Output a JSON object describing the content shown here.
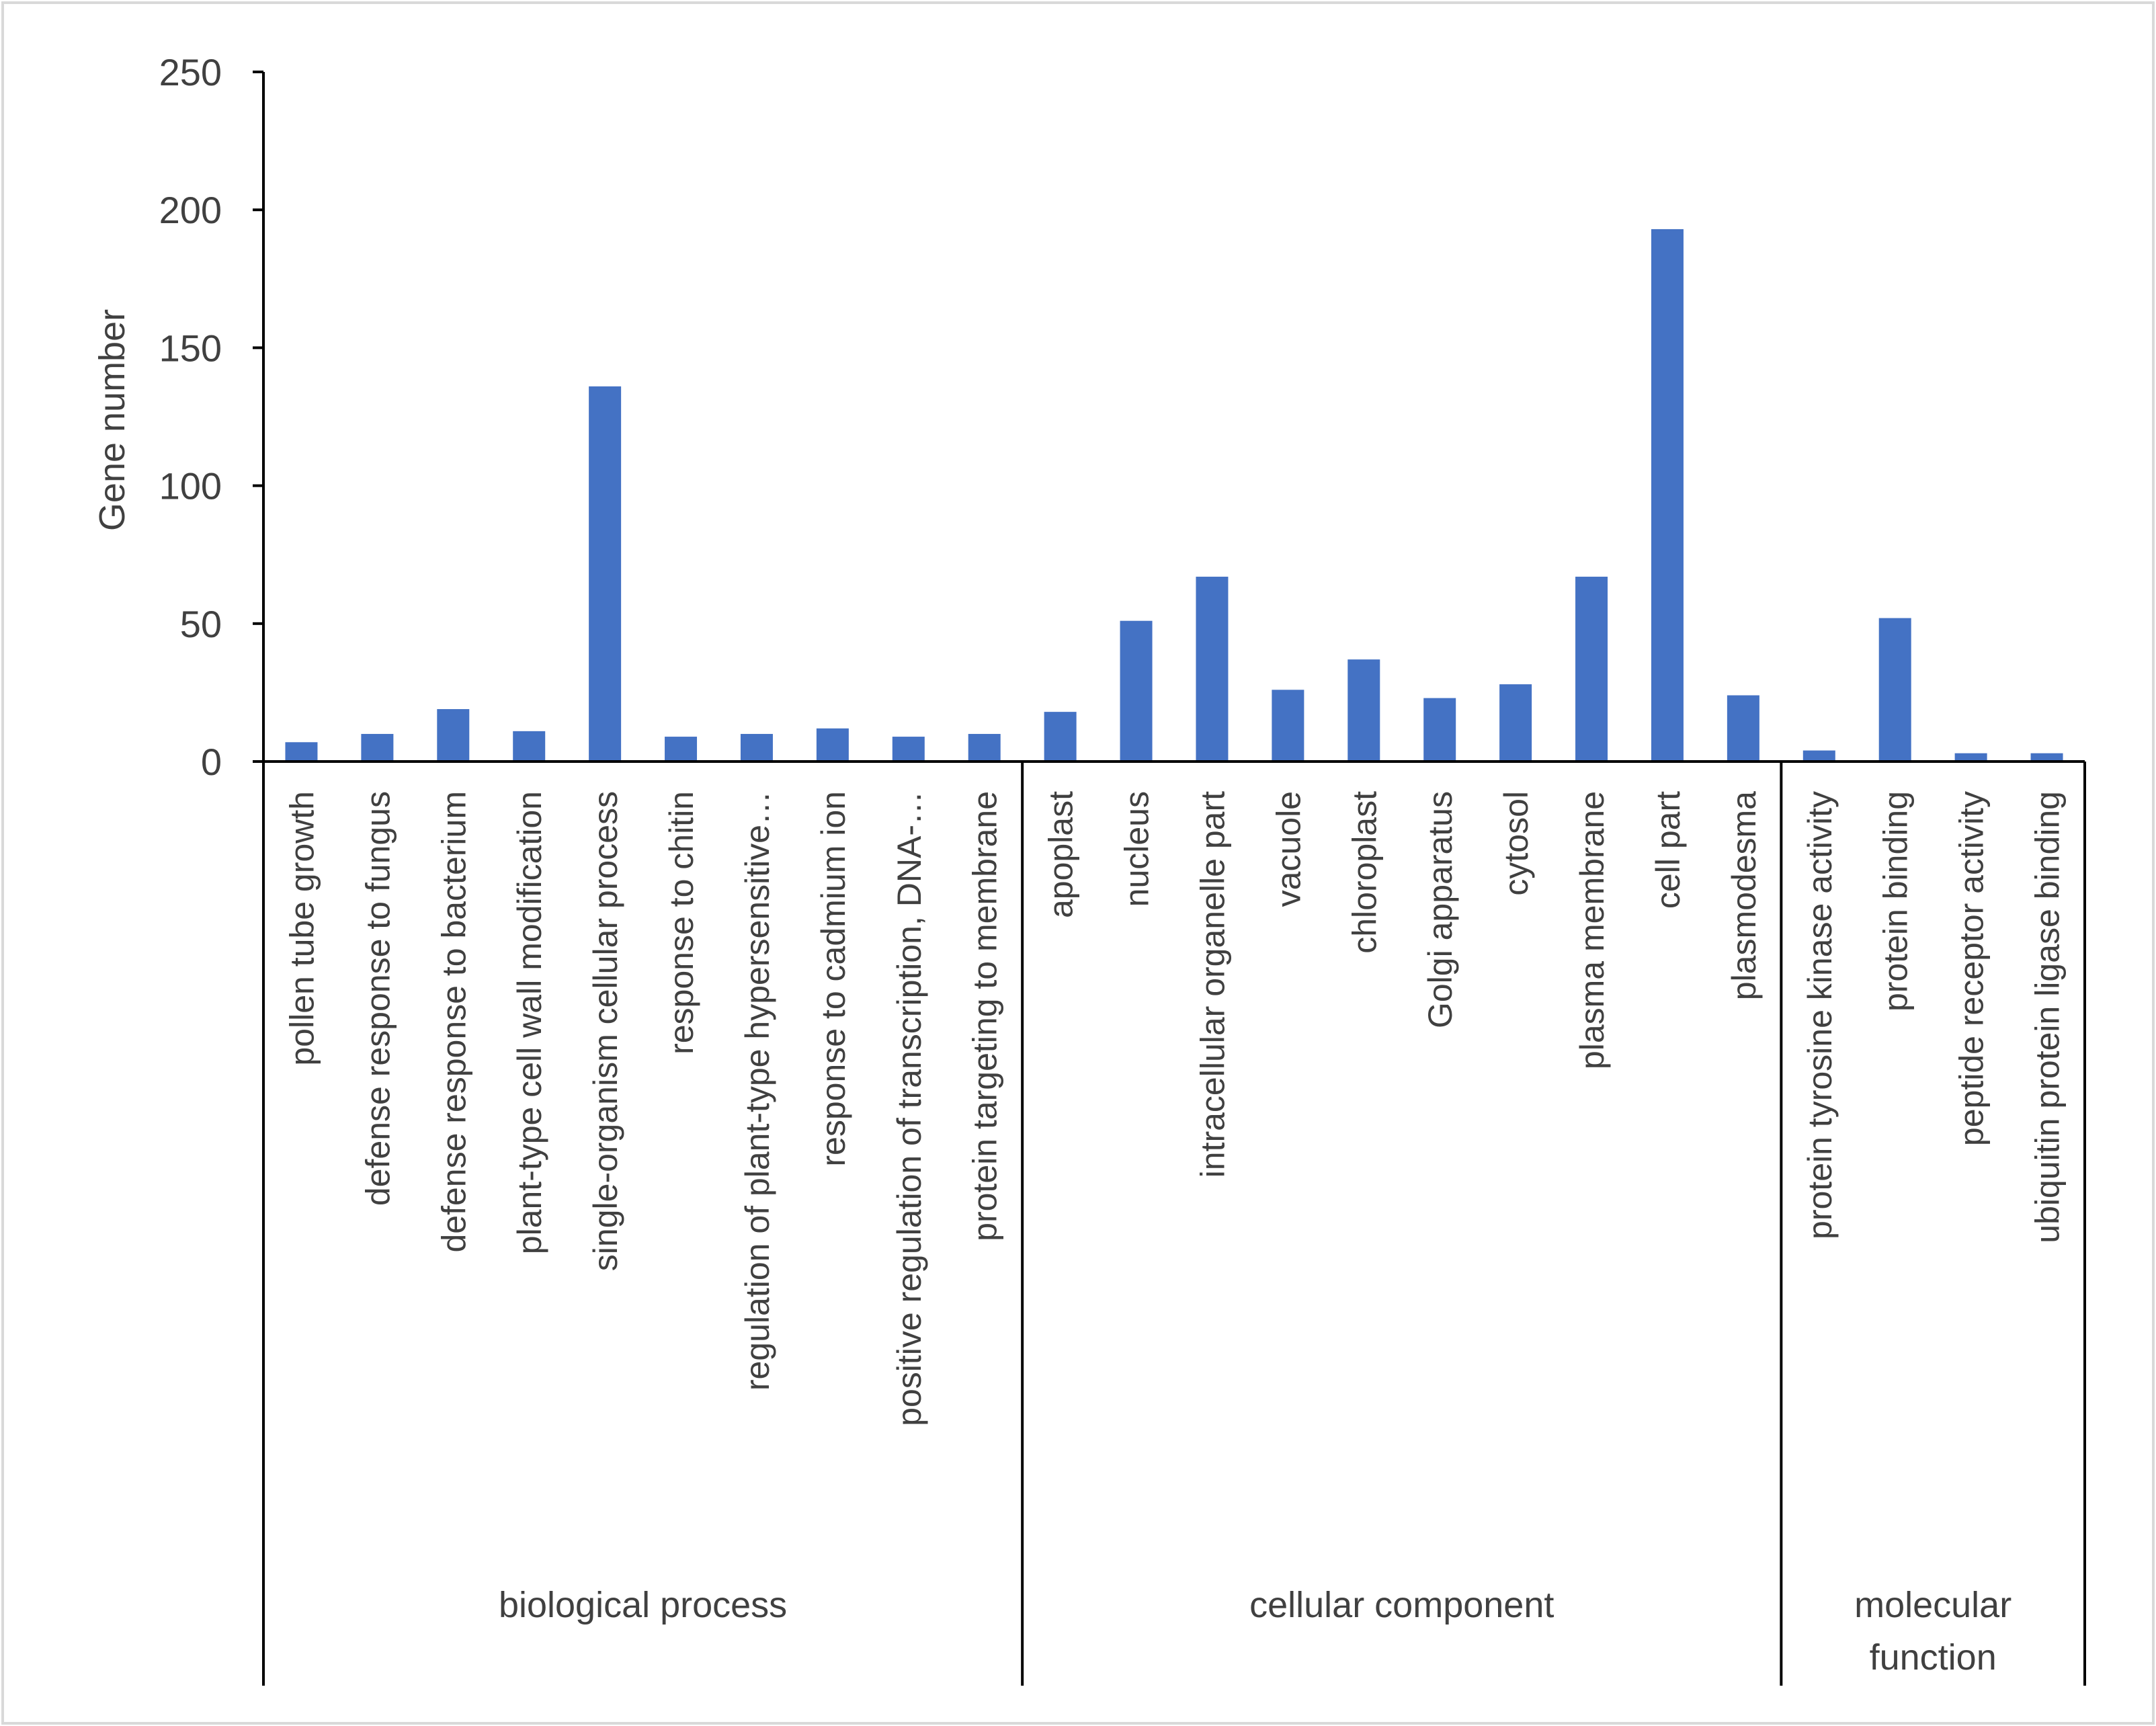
{
  "chart_data": {
    "type": "bar",
    "title": "",
    "xlabel": "",
    "ylabel": "Gene number",
    "ylim": [
      0,
      250
    ],
    "yticks": [
      0,
      50,
      100,
      150,
      200,
      250
    ],
    "grid": false,
    "legend": "none",
    "bar_color": "#4472C4",
    "categories": [
      "pollen tube growth",
      "defense response to fungus",
      "defense response to bacterium",
      "plant-type cell wall modification",
      "single-organism cellular process",
      "response to chitin",
      "regulation of plant-type hypersensitive…",
      "response to cadmium ion",
      "positive regulation of transcription, DNA-…",
      "protein targeting to membrane",
      "apoplast",
      "nucleus",
      "intracellular organelle part",
      "vacuole",
      "chloroplast",
      "Golgi apparatus",
      "cytosol",
      "plasma membrane",
      "cell part",
      "plasmodesma",
      "protein tyrosine kinase activity",
      "protein binding",
      "peptide receptor activity",
      "ubiquitin protein ligase binding"
    ],
    "values": [
      7,
      10,
      19,
      11,
      136,
      9,
      10,
      12,
      9,
      10,
      18,
      51,
      67,
      26,
      37,
      23,
      28,
      67,
      193,
      24,
      4,
      52,
      3,
      3
    ],
    "groups": [
      {
        "lines": [
          "biological process"
        ],
        "start": 0,
        "count": 10
      },
      {
        "lines": [
          "cellular component"
        ],
        "start": 10,
        "count": 10
      },
      {
        "lines": [
          "molecular",
          "function"
        ],
        "start": 20,
        "count": 4
      }
    ]
  }
}
